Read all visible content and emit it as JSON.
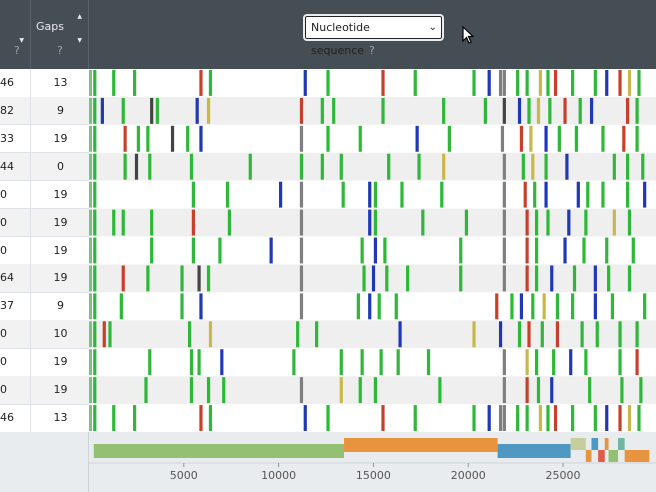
{
  "header": {
    "gaps_col_title": "Gaps",
    "help_mark": "?",
    "view_select": {
      "selected": "Nucleotide sequence",
      "chevron": "chevron-down-icon"
    }
  },
  "rows": [
    {
      "a": "46",
      "gaps": "13"
    },
    {
      "a": "82",
      "gaps": "9"
    },
    {
      "a": "33",
      "gaps": "19"
    },
    {
      "a": "44",
      "gaps": "0"
    },
    {
      "a": "0",
      "gaps": "19"
    },
    {
      "a": "0",
      "gaps": "19"
    },
    {
      "a": "0",
      "gaps": "19"
    },
    {
      "a": "64",
      "gaps": "19"
    },
    {
      "a": "37",
      "gaps": "9"
    },
    {
      "a": "0",
      "gaps": "10"
    },
    {
      "a": "0",
      "gaps": "19"
    },
    {
      "a": "0",
      "gaps": "19"
    },
    {
      "a": "46",
      "gaps": "13"
    }
  ],
  "colors": {
    "green": "#2db838",
    "blue": "#2038b8",
    "red": "#c8402b",
    "yellow": "#c8b84a",
    "gray": "#7f7f7f",
    "dark": "#444444"
  },
  "axis": {
    "ticks": [
      "5000",
      "10000",
      "15000",
      "20000",
      "25000"
    ],
    "tick_values": [
      5000,
      10000,
      15000,
      20000,
      25000
    ],
    "min": 0,
    "max": 29903
  },
  "genome_tracks": [
    {
      "start": 250,
      "end": 13450,
      "color": "#93c072"
    },
    {
      "start": 13450,
      "end": 21550,
      "color": "#e8943e"
    },
    {
      "start": 21550,
      "end": 25400,
      "color": "#4f98c1"
    },
    {
      "start": 25400,
      "end": 26200,
      "color": "#c6ce9c"
    },
    {
      "start": 26200,
      "end": 26500,
      "color": "#e8943e"
    },
    {
      "start": 26500,
      "end": 26850,
      "color": "#4f98c1"
    },
    {
      "start": 26850,
      "end": 27200,
      "color": "#e05b49"
    },
    {
      "start": 27200,
      "end": 27400,
      "color": "#e8943e"
    },
    {
      "start": 27400,
      "end": 27900,
      "color": "#93c072"
    },
    {
      "start": 27900,
      "end": 28250,
      "color": "#6fb8a0"
    },
    {
      "start": 28250,
      "end": 29550,
      "color": "#e8943e"
    }
  ],
  "mutation_rows": [
    [
      [
        300,
        "green"
      ],
      [
        1300,
        "green"
      ],
      [
        2400,
        "green"
      ],
      [
        5900,
        "red"
      ],
      [
        6400,
        "green"
      ],
      [
        11400,
        "blue"
      ],
      [
        12600,
        "green"
      ],
      [
        15500,
        "red"
      ],
      [
        17200,
        "green"
      ],
      [
        20300,
        "green"
      ],
      [
        21100,
        "blue"
      ],
      [
        21700,
        "gray"
      ],
      [
        21900,
        "gray"
      ],
      [
        22600,
        "green"
      ],
      [
        23100,
        "green"
      ],
      [
        23800,
        "yellow"
      ],
      [
        24200,
        "green"
      ],
      [
        24600,
        "red"
      ],
      [
        25500,
        "green"
      ],
      [
        26700,
        "green"
      ],
      [
        27300,
        "blue"
      ],
      [
        28000,
        "red"
      ],
      [
        28500,
        "yellow"
      ],
      [
        29000,
        "green"
      ]
    ],
    [
      [
        300,
        "green"
      ],
      [
        700,
        "blue"
      ],
      [
        1800,
        "green"
      ],
      [
        3300,
        "dark"
      ],
      [
        3600,
        "green"
      ],
      [
        5700,
        "blue"
      ],
      [
        6300,
        "yellow"
      ],
      [
        11200,
        "red"
      ],
      [
        12300,
        "green"
      ],
      [
        12900,
        "green"
      ],
      [
        15500,
        "green"
      ],
      [
        18700,
        "green"
      ],
      [
        20900,
        "green"
      ],
      [
        21900,
        "dark"
      ],
      [
        22700,
        "blue"
      ],
      [
        23200,
        "green"
      ],
      [
        23700,
        "yellow"
      ],
      [
        24300,
        "green"
      ],
      [
        25100,
        "red"
      ],
      [
        25900,
        "green"
      ],
      [
        26500,
        "blue"
      ],
      [
        28400,
        "red"
      ],
      [
        28900,
        "green"
      ]
    ],
    [
      [
        300,
        "green"
      ],
      [
        1900,
        "red"
      ],
      [
        2600,
        "green"
      ],
      [
        3100,
        "green"
      ],
      [
        4400,
        "dark"
      ],
      [
        5200,
        "green"
      ],
      [
        5900,
        "blue"
      ],
      [
        11200,
        "gray"
      ],
      [
        12600,
        "green"
      ],
      [
        14300,
        "green"
      ],
      [
        17300,
        "blue"
      ],
      [
        19000,
        "green"
      ],
      [
        21800,
        "gray"
      ],
      [
        22800,
        "red"
      ],
      [
        23300,
        "yellow"
      ],
      [
        24100,
        "blue"
      ],
      [
        24800,
        "green"
      ],
      [
        25700,
        "green"
      ],
      [
        27100,
        "green"
      ],
      [
        28200,
        "red"
      ],
      [
        28900,
        "green"
      ]
    ],
    [
      [
        300,
        "green"
      ],
      [
        1900,
        "green"
      ],
      [
        2500,
        "dark"
      ],
      [
        3200,
        "green"
      ],
      [
        5400,
        "green"
      ],
      [
        8500,
        "green"
      ],
      [
        11200,
        "green"
      ],
      [
        12300,
        "green"
      ],
      [
        13300,
        "green"
      ],
      [
        15800,
        "green"
      ],
      [
        17400,
        "green"
      ],
      [
        18700,
        "yellow"
      ],
      [
        21900,
        "gray"
      ],
      [
        22900,
        "green"
      ],
      [
        23400,
        "yellow"
      ],
      [
        24100,
        "green"
      ],
      [
        25200,
        "blue"
      ],
      [
        27700,
        "green"
      ],
      [
        28400,
        "green"
      ],
      [
        29200,
        "green"
      ]
    ],
    [
      [
        300,
        "green"
      ],
      [
        5500,
        "green"
      ],
      [
        7300,
        "green"
      ],
      [
        10100,
        "blue"
      ],
      [
        11200,
        "gray"
      ],
      [
        13400,
        "green"
      ],
      [
        14800,
        "blue"
      ],
      [
        15100,
        "green"
      ],
      [
        16500,
        "green"
      ],
      [
        18600,
        "green"
      ],
      [
        21900,
        "gray"
      ],
      [
        23000,
        "red"
      ],
      [
        23500,
        "green"
      ],
      [
        24100,
        "blue"
      ],
      [
        25800,
        "blue"
      ],
      [
        26300,
        "green"
      ],
      [
        27100,
        "green"
      ],
      [
        28400,
        "green"
      ],
      [
        29300,
        "blue"
      ]
    ],
    [
      [
        300,
        "green"
      ],
      [
        1300,
        "green"
      ],
      [
        1800,
        "green"
      ],
      [
        3300,
        "green"
      ],
      [
        5500,
        "red"
      ],
      [
        7400,
        "green"
      ],
      [
        11200,
        "gray"
      ],
      [
        14800,
        "blue"
      ],
      [
        15100,
        "green"
      ],
      [
        17600,
        "green"
      ],
      [
        19900,
        "green"
      ],
      [
        21900,
        "gray"
      ],
      [
        23100,
        "red"
      ],
      [
        23600,
        "green"
      ],
      [
        24200,
        "green"
      ],
      [
        25300,
        "blue"
      ],
      [
        26200,
        "green"
      ],
      [
        27700,
        "yellow"
      ],
      [
        28500,
        "green"
      ]
    ],
    [
      [
        300,
        "green"
      ],
      [
        3300,
        "green"
      ],
      [
        5500,
        "green"
      ],
      [
        6900,
        "green"
      ],
      [
        9600,
        "blue"
      ],
      [
        11200,
        "gray"
      ],
      [
        14400,
        "green"
      ],
      [
        15100,
        "blue"
      ],
      [
        15600,
        "green"
      ],
      [
        19600,
        "green"
      ],
      [
        21900,
        "gray"
      ],
      [
        23100,
        "red"
      ],
      [
        23600,
        "green"
      ],
      [
        25100,
        "blue"
      ],
      [
        26100,
        "green"
      ],
      [
        27300,
        "green"
      ],
      [
        28700,
        "green"
      ]
    ],
    [
      [
        300,
        "green"
      ],
      [
        1800,
        "red"
      ],
      [
        3100,
        "green"
      ],
      [
        4900,
        "green"
      ],
      [
        5800,
        "dark"
      ],
      [
        6300,
        "green"
      ],
      [
        11200,
        "gray"
      ],
      [
        14500,
        "green"
      ],
      [
        15000,
        "blue"
      ],
      [
        15700,
        "green"
      ],
      [
        16800,
        "green"
      ],
      [
        19600,
        "green"
      ],
      [
        21900,
        "gray"
      ],
      [
        23100,
        "red"
      ],
      [
        23600,
        "green"
      ],
      [
        24400,
        "blue"
      ],
      [
        25600,
        "green"
      ],
      [
        26700,
        "blue"
      ],
      [
        27400,
        "green"
      ],
      [
        28500,
        "green"
      ]
    ],
    [
      [
        300,
        "green"
      ],
      [
        1700,
        "green"
      ],
      [
        4900,
        "green"
      ],
      [
        5900,
        "blue"
      ],
      [
        11200,
        "gray"
      ],
      [
        14200,
        "green"
      ],
      [
        14800,
        "blue"
      ],
      [
        15300,
        "green"
      ],
      [
        16200,
        "green"
      ],
      [
        21500,
        "red"
      ],
      [
        22300,
        "green"
      ],
      [
        22800,
        "blue"
      ],
      [
        23400,
        "green"
      ],
      [
        24000,
        "yellow"
      ],
      [
        24700,
        "green"
      ],
      [
        25500,
        "green"
      ],
      [
        26700,
        "blue"
      ],
      [
        27600,
        "green"
      ],
      [
        29300,
        "green"
      ]
    ],
    [
      [
        300,
        "green"
      ],
      [
        800,
        "red"
      ],
      [
        1100,
        "green"
      ],
      [
        5300,
        "green"
      ],
      [
        6400,
        "yellow"
      ],
      [
        11000,
        "green"
      ],
      [
        12000,
        "green"
      ],
      [
        16400,
        "blue"
      ],
      [
        20300,
        "yellow"
      ],
      [
        21700,
        "blue"
      ],
      [
        22700,
        "green"
      ],
      [
        23200,
        "red"
      ],
      [
        23900,
        "green"
      ],
      [
        24700,
        "red"
      ],
      [
        26000,
        "green"
      ],
      [
        26800,
        "green"
      ],
      [
        28000,
        "green"
      ],
      [
        28900,
        "green"
      ]
    ],
    [
      [
        300,
        "green"
      ],
      [
        3200,
        "green"
      ],
      [
        5400,
        "green"
      ],
      [
        5800,
        "green"
      ],
      [
        7000,
        "blue"
      ],
      [
        10800,
        "green"
      ],
      [
        13300,
        "green"
      ],
      [
        14400,
        "green"
      ],
      [
        15400,
        "green"
      ],
      [
        16300,
        "green"
      ],
      [
        17900,
        "green"
      ],
      [
        21900,
        "gray"
      ],
      [
        23100,
        "yellow"
      ],
      [
        23600,
        "green"
      ],
      [
        24500,
        "green"
      ],
      [
        25400,
        "blue"
      ],
      [
        26200,
        "green"
      ],
      [
        28000,
        "green"
      ],
      [
        28900,
        "red"
      ]
    ],
    [
      [
        300,
        "green"
      ],
      [
        3000,
        "green"
      ],
      [
        5400,
        "green"
      ],
      [
        6300,
        "green"
      ],
      [
        7100,
        "green"
      ],
      [
        11200,
        "gray"
      ],
      [
        13300,
        "yellow"
      ],
      [
        14300,
        "green"
      ],
      [
        15100,
        "green"
      ],
      [
        18500,
        "green"
      ],
      [
        21900,
        "gray"
      ],
      [
        23100,
        "red"
      ],
      [
        23700,
        "green"
      ],
      [
        24400,
        "blue"
      ],
      [
        26400,
        "green"
      ],
      [
        28100,
        "green"
      ],
      [
        29100,
        "green"
      ]
    ],
    [
      [
        300,
        "green"
      ],
      [
        1300,
        "green"
      ],
      [
        2400,
        "green"
      ],
      [
        5900,
        "red"
      ],
      [
        6400,
        "green"
      ],
      [
        11400,
        "blue"
      ],
      [
        12600,
        "green"
      ],
      [
        15500,
        "red"
      ],
      [
        17200,
        "green"
      ],
      [
        20300,
        "green"
      ],
      [
        21100,
        "blue"
      ],
      [
        21700,
        "gray"
      ],
      [
        21900,
        "gray"
      ],
      [
        22600,
        "green"
      ],
      [
        23100,
        "green"
      ],
      [
        23800,
        "yellow"
      ],
      [
        24200,
        "green"
      ],
      [
        24600,
        "red"
      ],
      [
        25500,
        "green"
      ],
      [
        26700,
        "green"
      ],
      [
        27300,
        "blue"
      ],
      [
        28000,
        "red"
      ],
      [
        28500,
        "yellow"
      ],
      [
        29000,
        "green"
      ]
    ]
  ]
}
